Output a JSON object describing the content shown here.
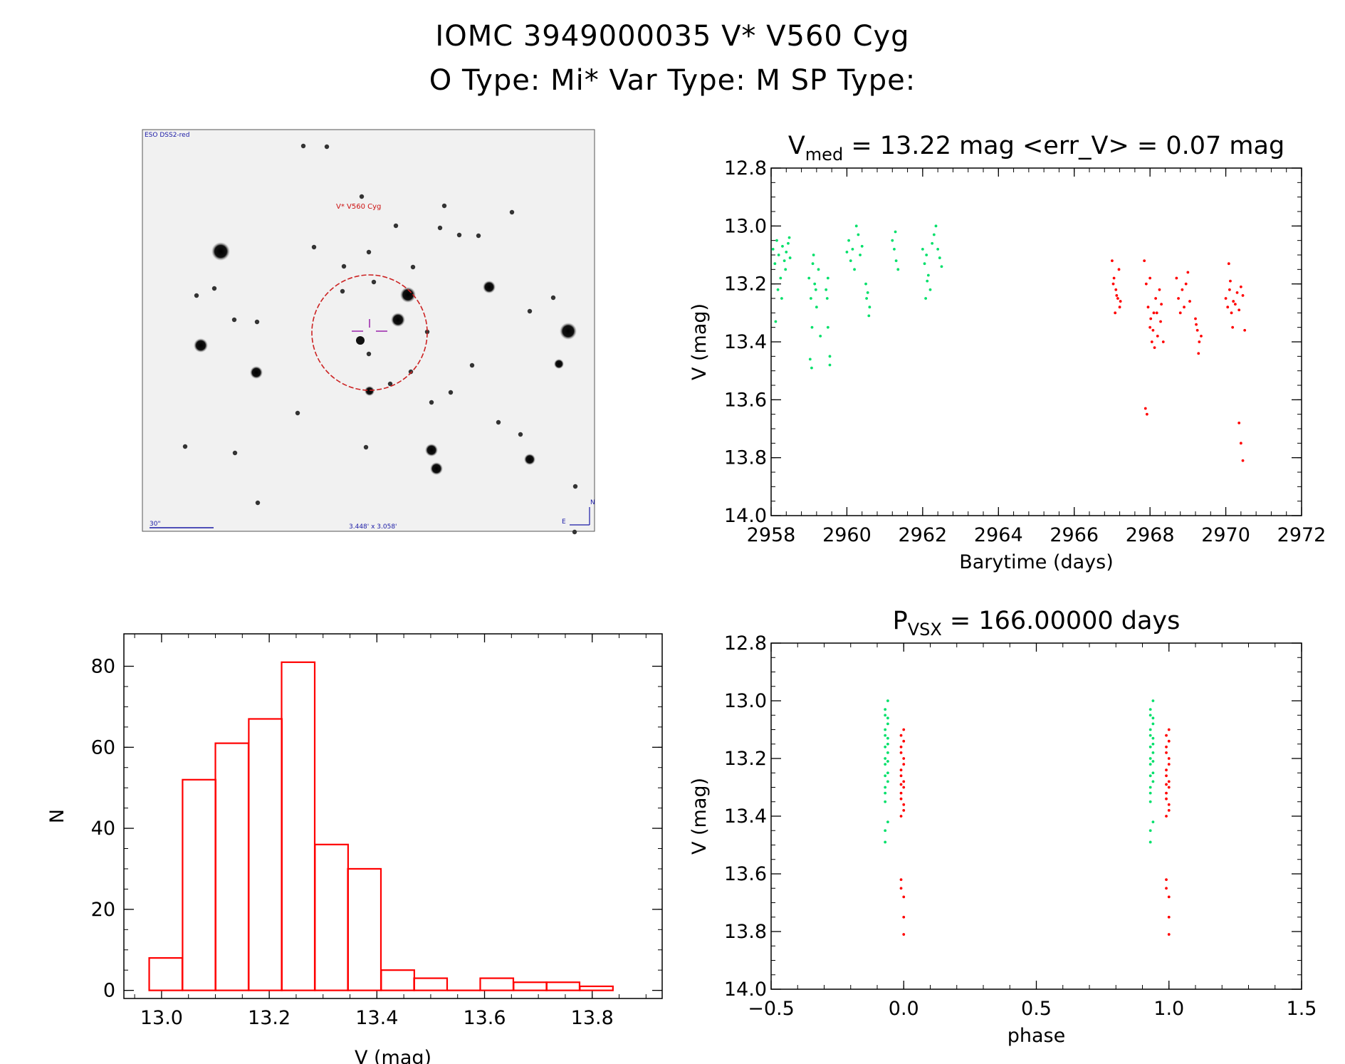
{
  "header": {
    "line1": "IOMC 3949000035    V* V560 Cyg",
    "line2": "O Type: Mi*  Var Type: M  SP Type:"
  },
  "image_panel": {
    "survey": "ESO DSS2-red",
    "target_label": "V* V560 Cyg",
    "scale_label": "30\"",
    "fov_label": "3.448' x 3.058'",
    "north": "N",
    "east": "E"
  },
  "colors": {
    "green": "#00e06a",
    "red": "#ff0000",
    "axis": "#000000",
    "circle": "#cc2222",
    "marker": "#9922aa",
    "label": "#1a1aa6",
    "target": "#cc1111"
  },
  "chart_data": [
    {
      "id": "lightcurve",
      "type": "scatter",
      "title_main": "V",
      "title_sub": "med",
      "title_rest": " = 13.22 mag <err_V> = 0.07 mag",
      "xlabel": "Barytime (days)",
      "ylabel": "V (mag)",
      "xlim": [
        2958,
        2972
      ],
      "ylim": [
        14.0,
        12.8
      ],
      "xticks": [
        2958,
        2960,
        2962,
        2964,
        2966,
        2968,
        2970,
        2972
      ],
      "yticks": [
        12.8,
        13.0,
        13.2,
        13.4,
        13.6,
        13.8,
        14.0
      ],
      "series": [
        {
          "name": "green",
          "color": "#00e06a",
          "points": [
            [
              2958.05,
              13.08
            ],
            [
              2958.1,
              13.13
            ],
            [
              2958.15,
              13.05
            ],
            [
              2958.2,
              13.1
            ],
            [
              2958.25,
              13.18
            ],
            [
              2958.3,
              13.07
            ],
            [
              2958.35,
              13.12
            ],
            [
              2958.4,
              13.09
            ],
            [
              2958.45,
              13.06
            ],
            [
              2958.5,
              13.11
            ],
            [
              2958.18,
              13.22
            ],
            [
              2958.28,
              13.25
            ],
            [
              2958.12,
              13.33
            ],
            [
              2958.38,
              13.15
            ],
            [
              2958.48,
              13.04
            ],
            [
              2959.0,
              13.18
            ],
            [
              2959.05,
              13.25
            ],
            [
              2959.1,
              13.13
            ],
            [
              2959.15,
              13.2
            ],
            [
              2959.2,
              13.28
            ],
            [
              2959.08,
              13.35
            ],
            [
              2959.12,
              13.1
            ],
            [
              2959.18,
              13.22
            ],
            [
              2959.03,
              13.46
            ],
            [
              2959.07,
              13.49
            ],
            [
              2959.25,
              13.15
            ],
            [
              2959.3,
              13.38
            ],
            [
              2959.45,
              13.22
            ],
            [
              2959.5,
              13.18
            ],
            [
              2959.55,
              13.48
            ],
            [
              2959.55,
              13.45
            ],
            [
              2959.5,
              13.35
            ],
            [
              2959.48,
              13.25
            ],
            [
              2960.0,
              13.09
            ],
            [
              2960.05,
              13.05
            ],
            [
              2960.1,
              13.12
            ],
            [
              2960.15,
              13.08
            ],
            [
              2960.2,
              13.15
            ],
            [
              2960.25,
              13.0
            ],
            [
              2960.3,
              13.03
            ],
            [
              2960.35,
              13.1
            ],
            [
              2960.4,
              13.07
            ],
            [
              2960.5,
              13.2
            ],
            [
              2960.55,
              13.23
            ],
            [
              2960.6,
              13.28
            ],
            [
              2960.52,
              13.25
            ],
            [
              2960.58,
              13.31
            ],
            [
              2961.2,
              13.05
            ],
            [
              2961.25,
              13.08
            ],
            [
              2961.3,
              13.12
            ],
            [
              2961.35,
              13.15
            ],
            [
              2961.28,
              13.02
            ],
            [
              2962.0,
              13.08
            ],
            [
              2962.05,
              13.13
            ],
            [
              2962.1,
              13.1
            ],
            [
              2962.15,
              13.17
            ],
            [
              2962.2,
              13.22
            ],
            [
              2962.08,
              13.25
            ],
            [
              2962.25,
              13.06
            ],
            [
              2962.3,
              13.03
            ],
            [
              2962.35,
              13.0
            ],
            [
              2962.4,
              13.08
            ],
            [
              2962.45,
              13.11
            ],
            [
              2962.5,
              13.14
            ],
            [
              2962.12,
              13.19
            ]
          ]
        },
        {
          "name": "red",
          "color": "#ff0000",
          "points": [
            [
              2967.0,
              13.12
            ],
            [
              2967.05,
              13.18
            ],
            [
              2967.1,
              13.22
            ],
            [
              2967.15,
              13.25
            ],
            [
              2967.2,
              13.28
            ],
            [
              2967.03,
              13.2
            ],
            [
              2967.08,
              13.3
            ],
            [
              2967.12,
              13.24
            ],
            [
              2967.18,
              13.15
            ],
            [
              2967.22,
              13.26
            ],
            [
              2967.85,
              13.12
            ],
            [
              2967.9,
              13.2
            ],
            [
              2967.95,
              13.28
            ],
            [
              2968.0,
              13.35
            ],
            [
              2968.05,
              13.4
            ],
            [
              2968.1,
              13.3
            ],
            [
              2968.15,
              13.25
            ],
            [
              2968.2,
              13.38
            ],
            [
              2968.25,
              13.22
            ],
            [
              2967.88,
              13.63
            ],
            [
              2967.92,
              13.65
            ],
            [
              2968.02,
              13.32
            ],
            [
              2968.12,
              13.42
            ],
            [
              2968.3,
              13.27
            ],
            [
              2968.35,
              13.4
            ],
            [
              2968.0,
              13.18
            ],
            [
              2968.08,
              13.36
            ],
            [
              2968.18,
              13.3
            ],
            [
              2968.28,
              13.33
            ],
            [
              2968.7,
              13.18
            ],
            [
              2968.75,
              13.25
            ],
            [
              2968.8,
              13.3
            ],
            [
              2968.85,
              13.22
            ],
            [
              2968.9,
              13.28
            ],
            [
              2968.95,
              13.2
            ],
            [
              2969.0,
              13.16
            ],
            [
              2969.05,
              13.26
            ],
            [
              2969.2,
              13.32
            ],
            [
              2969.25,
              13.36
            ],
            [
              2969.3,
              13.4
            ],
            [
              2969.35,
              13.38
            ],
            [
              2969.28,
              13.44
            ],
            [
              2969.22,
              13.34
            ],
            [
              2970.0,
              13.25
            ],
            [
              2970.05,
              13.28
            ],
            [
              2970.1,
              13.22
            ],
            [
              2970.15,
              13.3
            ],
            [
              2970.2,
              13.26
            ],
            [
              2970.08,
              13.13
            ],
            [
              2970.12,
              13.19
            ],
            [
              2970.18,
              13.35
            ],
            [
              2970.25,
              13.27
            ],
            [
              2970.3,
              13.23
            ],
            [
              2970.35,
              13.29
            ],
            [
              2970.4,
              13.21
            ],
            [
              2970.45,
              13.24
            ],
            [
              2970.5,
              13.36
            ],
            [
              2970.35,
              13.68
            ],
            [
              2970.4,
              13.75
            ],
            [
              2970.45,
              13.81
            ]
          ]
        }
      ]
    },
    {
      "id": "phase",
      "type": "scatter",
      "title_main": "P",
      "title_sub": "VSX",
      "title_rest": " = 166.00000 days",
      "xlabel": "phase",
      "ylabel": "V (mag)",
      "xlim": [
        -0.5,
        1.5
      ],
      "ylim": [
        14.0,
        12.8
      ],
      "xticks": [
        -0.5,
        0.0,
        0.5,
        1.0,
        1.5
      ],
      "xticklabels": [
        "−0.5",
        "0.0",
        "0.5",
        "1.0",
        "1.5"
      ],
      "yticks": [
        12.8,
        13.0,
        13.2,
        13.4,
        13.6,
        13.8,
        14.0
      ],
      "series": [
        {
          "name": "green",
          "color": "#00e06a",
          "points": [
            [
              -0.07,
              13.05
            ],
            [
              -0.07,
              13.1
            ],
            [
              -0.06,
              13.15
            ],
            [
              -0.07,
              13.2
            ],
            [
              -0.06,
              13.25
            ],
            [
              -0.07,
              13.3
            ],
            [
              -0.07,
              13.35
            ],
            [
              -0.06,
              13.0
            ],
            [
              -0.07,
              13.03
            ],
            [
              -0.06,
              13.08
            ],
            [
              -0.07,
              13.12
            ],
            [
              -0.06,
              13.18
            ],
            [
              -0.07,
              13.22
            ],
            [
              -0.06,
              13.28
            ],
            [
              -0.07,
              13.32
            ],
            [
              -0.06,
              13.42
            ],
            [
              -0.07,
              13.45
            ],
            [
              -0.07,
              13.49
            ],
            [
              -0.06,
              13.06
            ],
            [
              -0.06,
              13.13
            ],
            [
              -0.07,
              13.16
            ],
            [
              -0.06,
              13.21
            ],
            [
              -0.07,
              13.26
            ],
            [
              0.93,
              13.05
            ],
            [
              0.93,
              13.1
            ],
            [
              0.94,
              13.15
            ],
            [
              0.93,
              13.2
            ],
            [
              0.94,
              13.25
            ],
            [
              0.93,
              13.3
            ],
            [
              0.93,
              13.35
            ],
            [
              0.94,
              13.0
            ],
            [
              0.93,
              13.03
            ],
            [
              0.94,
              13.08
            ],
            [
              0.93,
              13.12
            ],
            [
              0.94,
              13.18
            ],
            [
              0.93,
              13.22
            ],
            [
              0.94,
              13.28
            ],
            [
              0.93,
              13.32
            ],
            [
              0.94,
              13.42
            ],
            [
              0.93,
              13.45
            ],
            [
              0.93,
              13.49
            ],
            [
              0.94,
              13.06
            ],
            [
              0.94,
              13.13
            ],
            [
              0.93,
              13.16
            ],
            [
              0.94,
              13.21
            ],
            [
              0.93,
              13.26
            ]
          ]
        },
        {
          "name": "red",
          "color": "#ff0000",
          "points": [
            [
              -0.01,
              13.12
            ],
            [
              -0.01,
              13.16
            ],
            [
              0.0,
              13.2
            ],
            [
              -0.01,
              13.24
            ],
            [
              0.0,
              13.28
            ],
            [
              -0.01,
              13.32
            ],
            [
              0.0,
              13.36
            ],
            [
              -0.01,
              13.4
            ],
            [
              0.0,
              13.14
            ],
            [
              -0.01,
              13.18
            ],
            [
              0.0,
              13.22
            ],
            [
              -0.01,
              13.26
            ],
            [
              0.0,
              13.3
            ],
            [
              -0.01,
              13.34
            ],
            [
              0.0,
              13.38
            ],
            [
              -0.01,
              13.62
            ],
            [
              -0.01,
              13.65
            ],
            [
              0.0,
              13.68
            ],
            [
              0.0,
              13.75
            ],
            [
              0.0,
              13.81
            ],
            [
              0.0,
              13.1
            ],
            [
              -0.01,
              13.29
            ],
            [
              0.99,
              13.12
            ],
            [
              0.99,
              13.16
            ],
            [
              1.0,
              13.2
            ],
            [
              0.99,
              13.24
            ],
            [
              1.0,
              13.28
            ],
            [
              0.99,
              13.32
            ],
            [
              1.0,
              13.36
            ],
            [
              0.99,
              13.4
            ],
            [
              1.0,
              13.14
            ],
            [
              0.99,
              13.18
            ],
            [
              1.0,
              13.22
            ],
            [
              0.99,
              13.26
            ],
            [
              1.0,
              13.3
            ],
            [
              0.99,
              13.34
            ],
            [
              1.0,
              13.38
            ],
            [
              0.99,
              13.62
            ],
            [
              0.99,
              13.65
            ],
            [
              1.0,
              13.68
            ],
            [
              1.0,
              13.75
            ],
            [
              1.0,
              13.81
            ],
            [
              1.0,
              13.1
            ],
            [
              0.99,
              13.29
            ]
          ]
        }
      ]
    },
    {
      "id": "histogram",
      "type": "bar",
      "title": "",
      "xlabel": "V (mag)",
      "ylabel": "N",
      "xlim": [
        12.93,
        13.93
      ],
      "ylim": [
        -2,
        88
      ],
      "xticks": [
        13.0,
        13.2,
        13.4,
        13.6,
        13.8
      ],
      "yticks": [
        0,
        20,
        40,
        60,
        80
      ],
      "bin_width": 0.0615,
      "bins": [
        {
          "left": 12.977,
          "count": 8
        },
        {
          "left": 13.039,
          "count": 52
        },
        {
          "left": 13.1,
          "count": 61
        },
        {
          "left": 13.162,
          "count": 67
        },
        {
          "left": 13.223,
          "count": 81
        },
        {
          "left": 13.285,
          "count": 36
        },
        {
          "left": 13.346,
          "count": 30
        },
        {
          "left": 13.408,
          "count": 5
        },
        {
          "left": 13.469,
          "count": 3
        },
        {
          "left": 13.531,
          "count": 0
        },
        {
          "left": 13.592,
          "count": 3
        },
        {
          "left": 13.654,
          "count": 2
        },
        {
          "left": 13.715,
          "count": 2
        },
        {
          "left": 13.777,
          "count": 1
        }
      ],
      "color": "#ff0000"
    }
  ]
}
